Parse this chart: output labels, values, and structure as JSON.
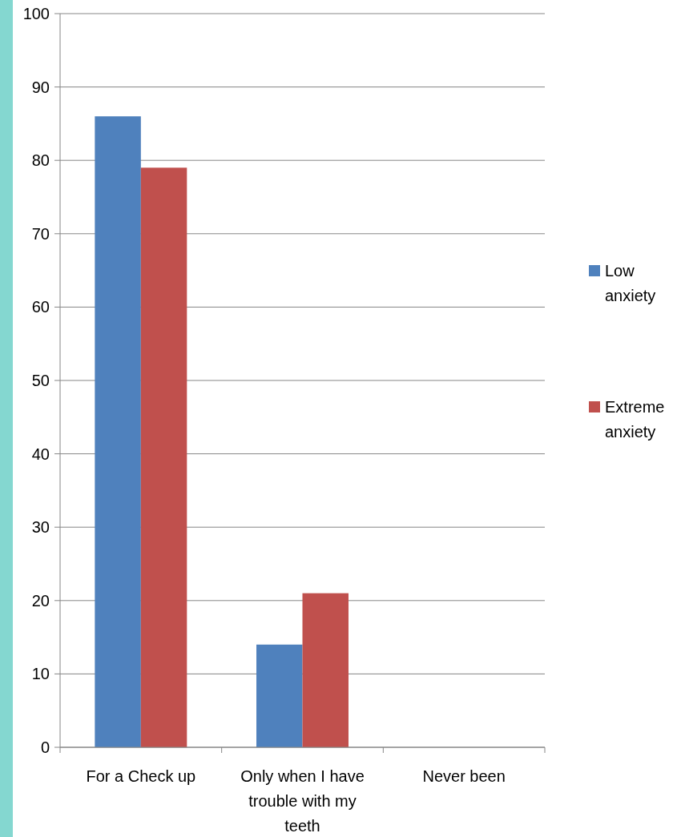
{
  "chart_data": {
    "type": "bar",
    "categories": [
      "For a Check up",
      "Only when I have trouble with my teeth",
      "Never been"
    ],
    "series": [
      {
        "name": "Low anxiety",
        "color": "#4f81bd",
        "values": [
          86,
          14,
          0
        ]
      },
      {
        "name": "Extreme anxiety",
        "color": "#c0504d",
        "values": [
          79,
          21,
          0
        ]
      }
    ],
    "ylim": [
      0,
      100
    ],
    "yticks": [
      0,
      10,
      20,
      30,
      40,
      50,
      60,
      70,
      80,
      90,
      100
    ],
    "grid": "y",
    "legend": "right"
  }
}
